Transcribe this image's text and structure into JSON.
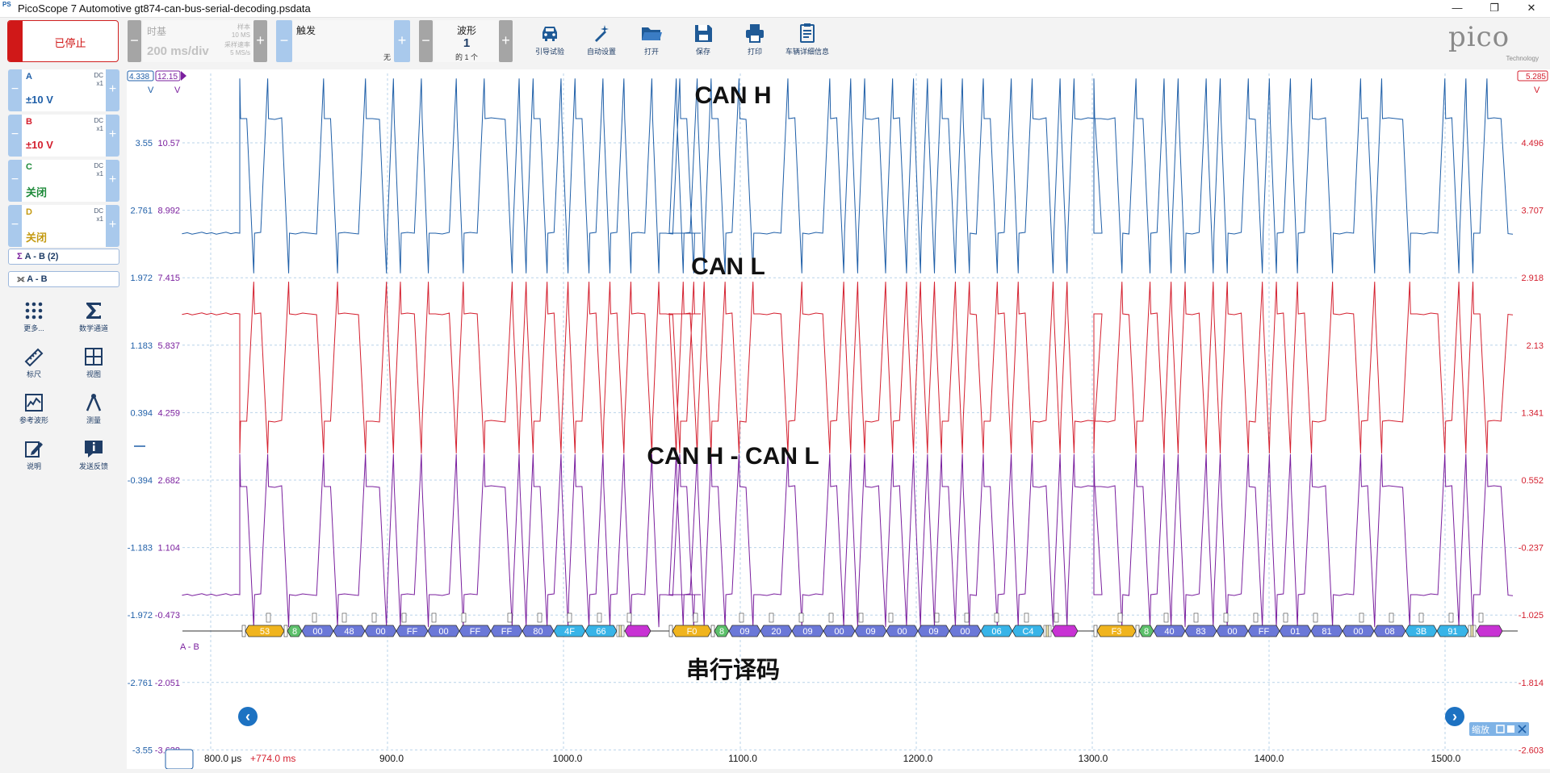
{
  "window": {
    "title": "PicoScope 7 Automotive gt874-can-bus-serial-decoding.psdata",
    "app_icon_label": "PS",
    "controls": [
      "—",
      "❐",
      "✕"
    ]
  },
  "toolbar": {
    "run_state": "已停止",
    "timebase": {
      "label": "时基",
      "value": "200 ms/div",
      "samples_label": "样本",
      "samples": "10 MS",
      "rate_label": "采样速率",
      "rate": "5 MS/s",
      "minus": "−",
      "plus": "+"
    },
    "trigger": {
      "label": "触发",
      "mode": "无",
      "minus": "−",
      "plus": "+"
    },
    "waveform": {
      "label": "波形",
      "index": "1",
      "total": "的 1 个",
      "minus": "−",
      "plus": "+"
    },
    "tools": [
      {
        "label": "引导试验",
        "icon": "car-icon"
      },
      {
        "label": "自动设置",
        "icon": "magic-wand-icon"
      },
      {
        "label": "打开",
        "icon": "folder-icon"
      },
      {
        "label": "保存",
        "icon": "save-icon"
      },
      {
        "label": "打印",
        "icon": "printer-icon"
      },
      {
        "label": "车辆详细信息",
        "icon": "clipboard-icon"
      }
    ],
    "logo": {
      "text": "pico",
      "sub": "Technology"
    }
  },
  "channels": [
    {
      "name": "A",
      "coupling": "DC",
      "probe": "x1",
      "range": "±10 V",
      "color": "#1f5fa8"
    },
    {
      "name": "B",
      "coupling": "DC",
      "probe": "x1",
      "range": "±10 V",
      "color": "#d4202f"
    },
    {
      "name": "C",
      "coupling": "DC",
      "probe": "x1",
      "range": "关闭",
      "color": "#1e8a3a"
    },
    {
      "name": "D",
      "coupling": "DC",
      "probe": "x1",
      "range": "关闭",
      "color": "#c49a12"
    }
  ],
  "math_channels": [
    {
      "label": "A - B (2)",
      "icon": "sigma-icon"
    },
    {
      "label": "A - B",
      "icon": "serial-decode-icon"
    }
  ],
  "side_tools": [
    {
      "label": "更多...",
      "icon": "grid-dots-icon"
    },
    {
      "label": "数学通道",
      "icon": "sigma-icon"
    },
    {
      "label": "标尺",
      "icon": "ruler-icon"
    },
    {
      "label": "视图",
      "icon": "view-grid-icon"
    },
    {
      "label": "参考波形",
      "icon": "reference-waveform-icon"
    },
    {
      "label": "测量",
      "icon": "measure-icon"
    },
    {
      "label": "说明",
      "icon": "notes-icon"
    },
    {
      "label": "发送反馈",
      "icon": "info-icon"
    }
  ],
  "scope": {
    "left_scale_top": "4.338",
    "left_scale2_top": "12.15",
    "unit_a": "V",
    "unit_b": "V",
    "right_scale_top": "5.285",
    "right_unit": "V",
    "left_ticks_a": [
      "3.55",
      "2.761",
      "1.972",
      "1.183",
      "0.394",
      "-0.394",
      "-1.183",
      "-1.972",
      "-2.761",
      "-3.55"
    ],
    "left_ticks_b": [
      "10.57",
      "8.992",
      "7.415",
      "5.837",
      "4.259",
      "2.682",
      "1.104",
      "-0.473",
      "-2.051",
      "-3.628"
    ],
    "right_ticks": [
      "4.496",
      "3.707",
      "2.918",
      "2.13",
      "1.341",
      "0.552",
      "-0.237",
      "-1.025",
      "-1.814",
      "-2.603"
    ],
    "x_ticks": [
      "900.0",
      "1000.0",
      "1100.0",
      "1200.0",
      "1300.0",
      "1400.0",
      "1500.0"
    ],
    "x_start": "800.0 μs",
    "x_offset": "+774.0 ms",
    "decode_label": "A - B",
    "zoom_label": "缩放",
    "nav_left": "‹",
    "nav_right": "›"
  },
  "annotations": {
    "can_h": "CAN H",
    "can_l": "CAN L",
    "diff": "CAN H - CAN L",
    "decode": "串行译码"
  },
  "frames": [
    {
      "id": "53",
      "dlc": "8",
      "data": [
        "00",
        "48",
        "00",
        "FF",
        "00",
        "FF",
        "FF",
        "80",
        "4F",
        "66"
      ]
    },
    {
      "id": "F0",
      "dlc": "8",
      "data": [
        "09",
        "20",
        "09",
        "00",
        "09",
        "00",
        "09",
        "00",
        "06",
        "C4"
      ]
    },
    {
      "id": "F3",
      "dlc": "8",
      "data": [
        "40",
        "83",
        "00",
        "FF",
        "01",
        "81",
        "00",
        "08",
        "3B",
        "91"
      ]
    }
  ],
  "colors": {
    "ch_a": "#1f5fa8",
    "ch_b": "#d4202f",
    "math": "#7a1f9e",
    "id_field": "#f0b41e",
    "dlc_field": "#5cc06a",
    "data_field": "#6b78d8",
    "crc_field": "#38b4e8",
    "end_field": "#c832d4"
  }
}
